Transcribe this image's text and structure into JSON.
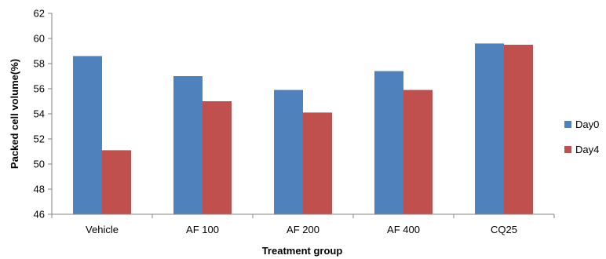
{
  "chart_data": {
    "type": "bar",
    "title": "",
    "xlabel": "Treatment group",
    "ylabel": "Packed cell volume(%)",
    "ylim": [
      46,
      62
    ],
    "ytick_step": 2,
    "grid": false,
    "legend_position": "right",
    "categories": [
      "Vehicle",
      "AF 100",
      "AF 200",
      "AF 400",
      "CQ25"
    ],
    "series": [
      {
        "name": "Day0",
        "color": "#4f81bd",
        "values": [
          58.6,
          57.0,
          55.9,
          57.4,
          59.6
        ]
      },
      {
        "name": "Day4",
        "color": "#c0504d",
        "values": [
          51.1,
          55.0,
          54.1,
          55.9,
          59.5
        ]
      }
    ]
  }
}
